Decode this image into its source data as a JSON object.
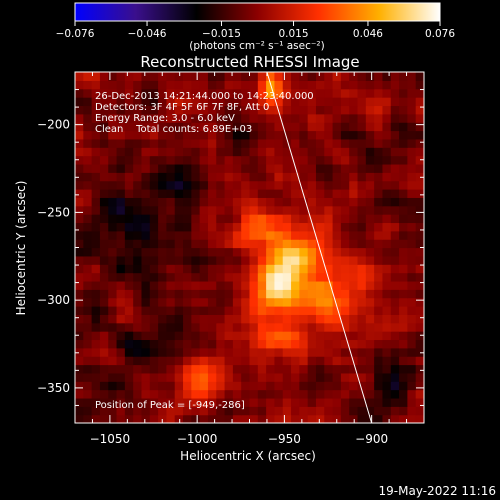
{
  "chart_data": {
    "type": "heatmap",
    "title": "Reconstructed RHESSI Image",
    "xlabel": "Heliocentric X (arcsec)",
    "ylabel": "Heliocentric Y (arcsec)",
    "xlim": [
      -1070,
      -870
    ],
    "ylim": [
      -370,
      -170
    ],
    "x_ticks": [
      {
        "value": -1050,
        "label": "−1050"
      },
      {
        "value": -1000,
        "label": "−1000"
      },
      {
        "value": -950,
        "label": "−950"
      },
      {
        "value": -900,
        "label": "−900"
      }
    ],
    "y_ticks": [
      {
        "value": -200,
        "label": "−200"
      },
      {
        "value": -250,
        "label": "−250"
      },
      {
        "value": -300,
        "label": "−300"
      },
      {
        "value": -350,
        "label": "−350"
      }
    ],
    "colorbar": {
      "range": [
        -0.076,
        0.076
      ],
      "ticks": [
        {
          "value": -0.076,
          "label": "−0.076"
        },
        {
          "value": -0.046,
          "label": "−0.046"
        },
        {
          "value": -0.015,
          "label": "−0.015"
        },
        {
          "value": 0.015,
          "label": "0.015"
        },
        {
          "value": 0.046,
          "label": "0.046"
        },
        {
          "value": 0.076,
          "label": "0.076"
        }
      ],
      "unit_label": "(photons cm⁻² s⁻¹ asec⁻²)",
      "colors": [
        "#0000ff",
        "#3a0f8c",
        "#000000",
        "#8c0000",
        "#ff3000",
        "#ffb000",
        "#ffffff"
      ]
    },
    "annotations": {
      "line1": "26-Dec-2013 14:21:44.000 to 14:23:40.000",
      "line2": "Detectors: 3F 4F 5F 6F 7F 8F, Att 0",
      "line3": "Energy Range: 3.0 - 6.0 keV",
      "line4": "Clean    Total counts: 6.89E+03",
      "peak": "Position of Peak = [-949,-286]"
    },
    "peak": {
      "x": -949,
      "y": -286
    },
    "sources": [
      {
        "x": -949,
        "y": -283,
        "amp": 0.076,
        "sx": 9,
        "sy": 18,
        "angle": 35
      },
      {
        "x": -965,
        "y": -262,
        "amp": 0.04,
        "sx": 10,
        "sy": 10,
        "angle": 0
      },
      {
        "x": -925,
        "y": -300,
        "amp": 0.045,
        "sx": 12,
        "sy": 10,
        "angle": 0
      },
      {
        "x": -905,
        "y": -285,
        "amp": 0.03,
        "sx": 10,
        "sy": 10,
        "angle": 0
      },
      {
        "x": -955,
        "y": -320,
        "amp": 0.03,
        "sx": 12,
        "sy": 8,
        "angle": 0
      },
      {
        "x": -958,
        "y": -180,
        "amp": 0.05,
        "sx": 5,
        "sy": 7,
        "angle": 0
      },
      {
        "x": -1000,
        "y": -345,
        "amp": 0.035,
        "sx": 10,
        "sy": 8,
        "angle": 0
      },
      {
        "x": -1040,
        "y": -262,
        "amp": -0.025,
        "sx": 14,
        "sy": 18,
        "angle": 0
      },
      {
        "x": -1010,
        "y": -235,
        "amp": -0.02,
        "sx": 12,
        "sy": 12,
        "angle": 0
      },
      {
        "x": -890,
        "y": -350,
        "amp": -0.02,
        "sx": 12,
        "sy": 12,
        "angle": 0
      },
      {
        "x": -1035,
        "y": -330,
        "amp": -0.015,
        "sx": 12,
        "sy": 12,
        "angle": 0
      }
    ],
    "limb_line": {
      "x": [
        -960,
        -900
      ],
      "y": [
        -170,
        -370
      ]
    }
  },
  "footer_timestamp": "19-May-2022 11:16"
}
